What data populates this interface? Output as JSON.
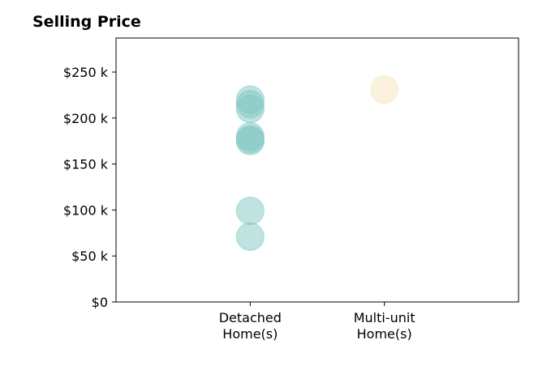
{
  "chart_data": {
    "type": "scatter",
    "title": "Selling Price",
    "xlabel": "",
    "ylabel": "",
    "categories": [
      "Detached\nHome(s)",
      "Multi-unit\nHome(s)"
    ],
    "xlim": [
      0,
      3
    ],
    "ylim": [
      0,
      287
    ],
    "y_ticks": [
      0,
      50,
      100,
      150,
      200,
      250
    ],
    "y_tick_labels": [
      "$0",
      "$50 k",
      "$100 k",
      "$150 k",
      "$200 k",
      "$250 k"
    ],
    "grid": false,
    "legend": "none",
    "series": [
      {
        "category_index": 1,
        "color": "#7fc8c2",
        "values": [
          71,
          99,
          175,
          177,
          180,
          210,
          215,
          220
        ]
      },
      {
        "category_index": 2,
        "color": "#f6e3bf",
        "values": [
          231
        ]
      }
    ]
  }
}
